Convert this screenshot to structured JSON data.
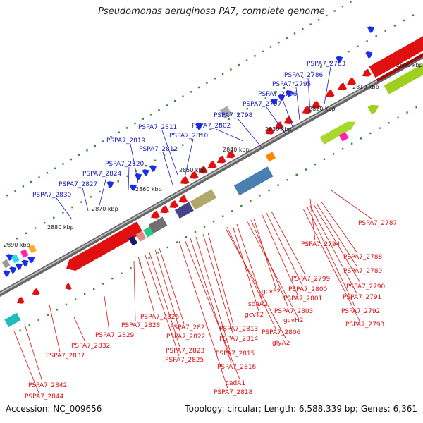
{
  "title": "Pseudomonas aeruginosa PA7, complete genome",
  "footer": {
    "accession": "Accession: NC_009656",
    "stats": "Topology: circular; Length: 6,588,339 bp; Genes: 6,361"
  },
  "colors": {
    "top_labels": "#1a1acc",
    "bottom_labels": "#e01010",
    "backbone": "#777777"
  },
  "ruler_labels": [
    "2800 kbp",
    "2810 kbp",
    "2820 kbp",
    "2830 kbp",
    "2840 kbp",
    "2850 kbp",
    "2860 kbp",
    "2870 kbp",
    "2880 kbp",
    "2890 kbp"
  ],
  "top_genes": [
    "PSPA7_2783",
    "PSPA7_2786",
    "PSPA7_2795",
    "PSPA7_2796",
    "PSPA7_2797",
    "PSPA7_2798",
    "PSPA7_2802",
    "PSPA7_2811",
    "PSPA7_2810",
    "PSPA7_2819",
    "PSPA7_2812",
    "PSPA7_2820",
    "PSPA7_2824",
    "PSPA7_2827",
    "PSPA7_2830"
  ],
  "bottom_genes": [
    "PSPA7_2787",
    "PSPA7_2794",
    "PSPA7_2788",
    "PSPA7_2789",
    "PSPA7_2790",
    "PSPA7_2791",
    "PSPA7_2792",
    "PSPA7_2793",
    "PSPA7_2799",
    "PSPA7_2800",
    "PSPA7_2801",
    "gcvP2",
    "PSPA7_2803",
    "gcvH2",
    "sdaA2",
    "gcvT2",
    "PSPA7_2806",
    "glyA2",
    "PSPA7_2813",
    "PSPA7_2814",
    "PSPA7_2815",
    "PSPA7_2816",
    "cadA1",
    "PSPA7_2818",
    "PSPA7_2821",
    "PSPA7_2822",
    "PSPA7_2823",
    "PSPA7_2825",
    "PSPA7_2826",
    "PSPA7_2828",
    "PSPA7_2829",
    "PSPA7_2832",
    "PSPA7_2837",
    "PSPA7_2842",
    "PSPA7_2844"
  ]
}
